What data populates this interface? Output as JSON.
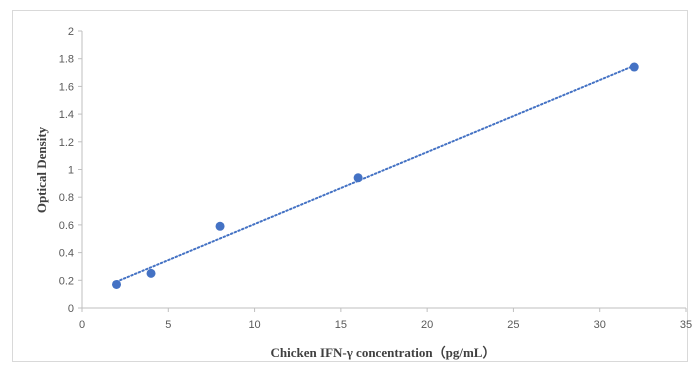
{
  "chart_data": {
    "type": "scatter",
    "title": "",
    "xlabel": "Chicken IFN-γ concentration（pg/mL）",
    "ylabel": "Optical Density",
    "xlim": [
      0,
      35
    ],
    "ylim": [
      0,
      2
    ],
    "xticks": [
      "0",
      "5",
      "10",
      "15",
      "20",
      "25",
      "30",
      "35"
    ],
    "yticks": [
      "0",
      "0.2",
      "0.4",
      "0.6",
      "0.8",
      "1",
      "1.2",
      "1.4",
      "1.6",
      "1.8",
      "2"
    ],
    "grid": false,
    "legend": "none",
    "series": [
      {
        "x": [
          2,
          4,
          8,
          16,
          32
        ],
        "y": [
          0.17,
          0.25,
          0.59,
          0.94,
          1.74
        ],
        "color": "#4472c4"
      }
    ],
    "trendline": {
      "type": "linear",
      "style": "dotted",
      "color": "#4472c4",
      "x": [
        2,
        32
      ],
      "y": [
        0.19,
        1.75
      ]
    }
  }
}
